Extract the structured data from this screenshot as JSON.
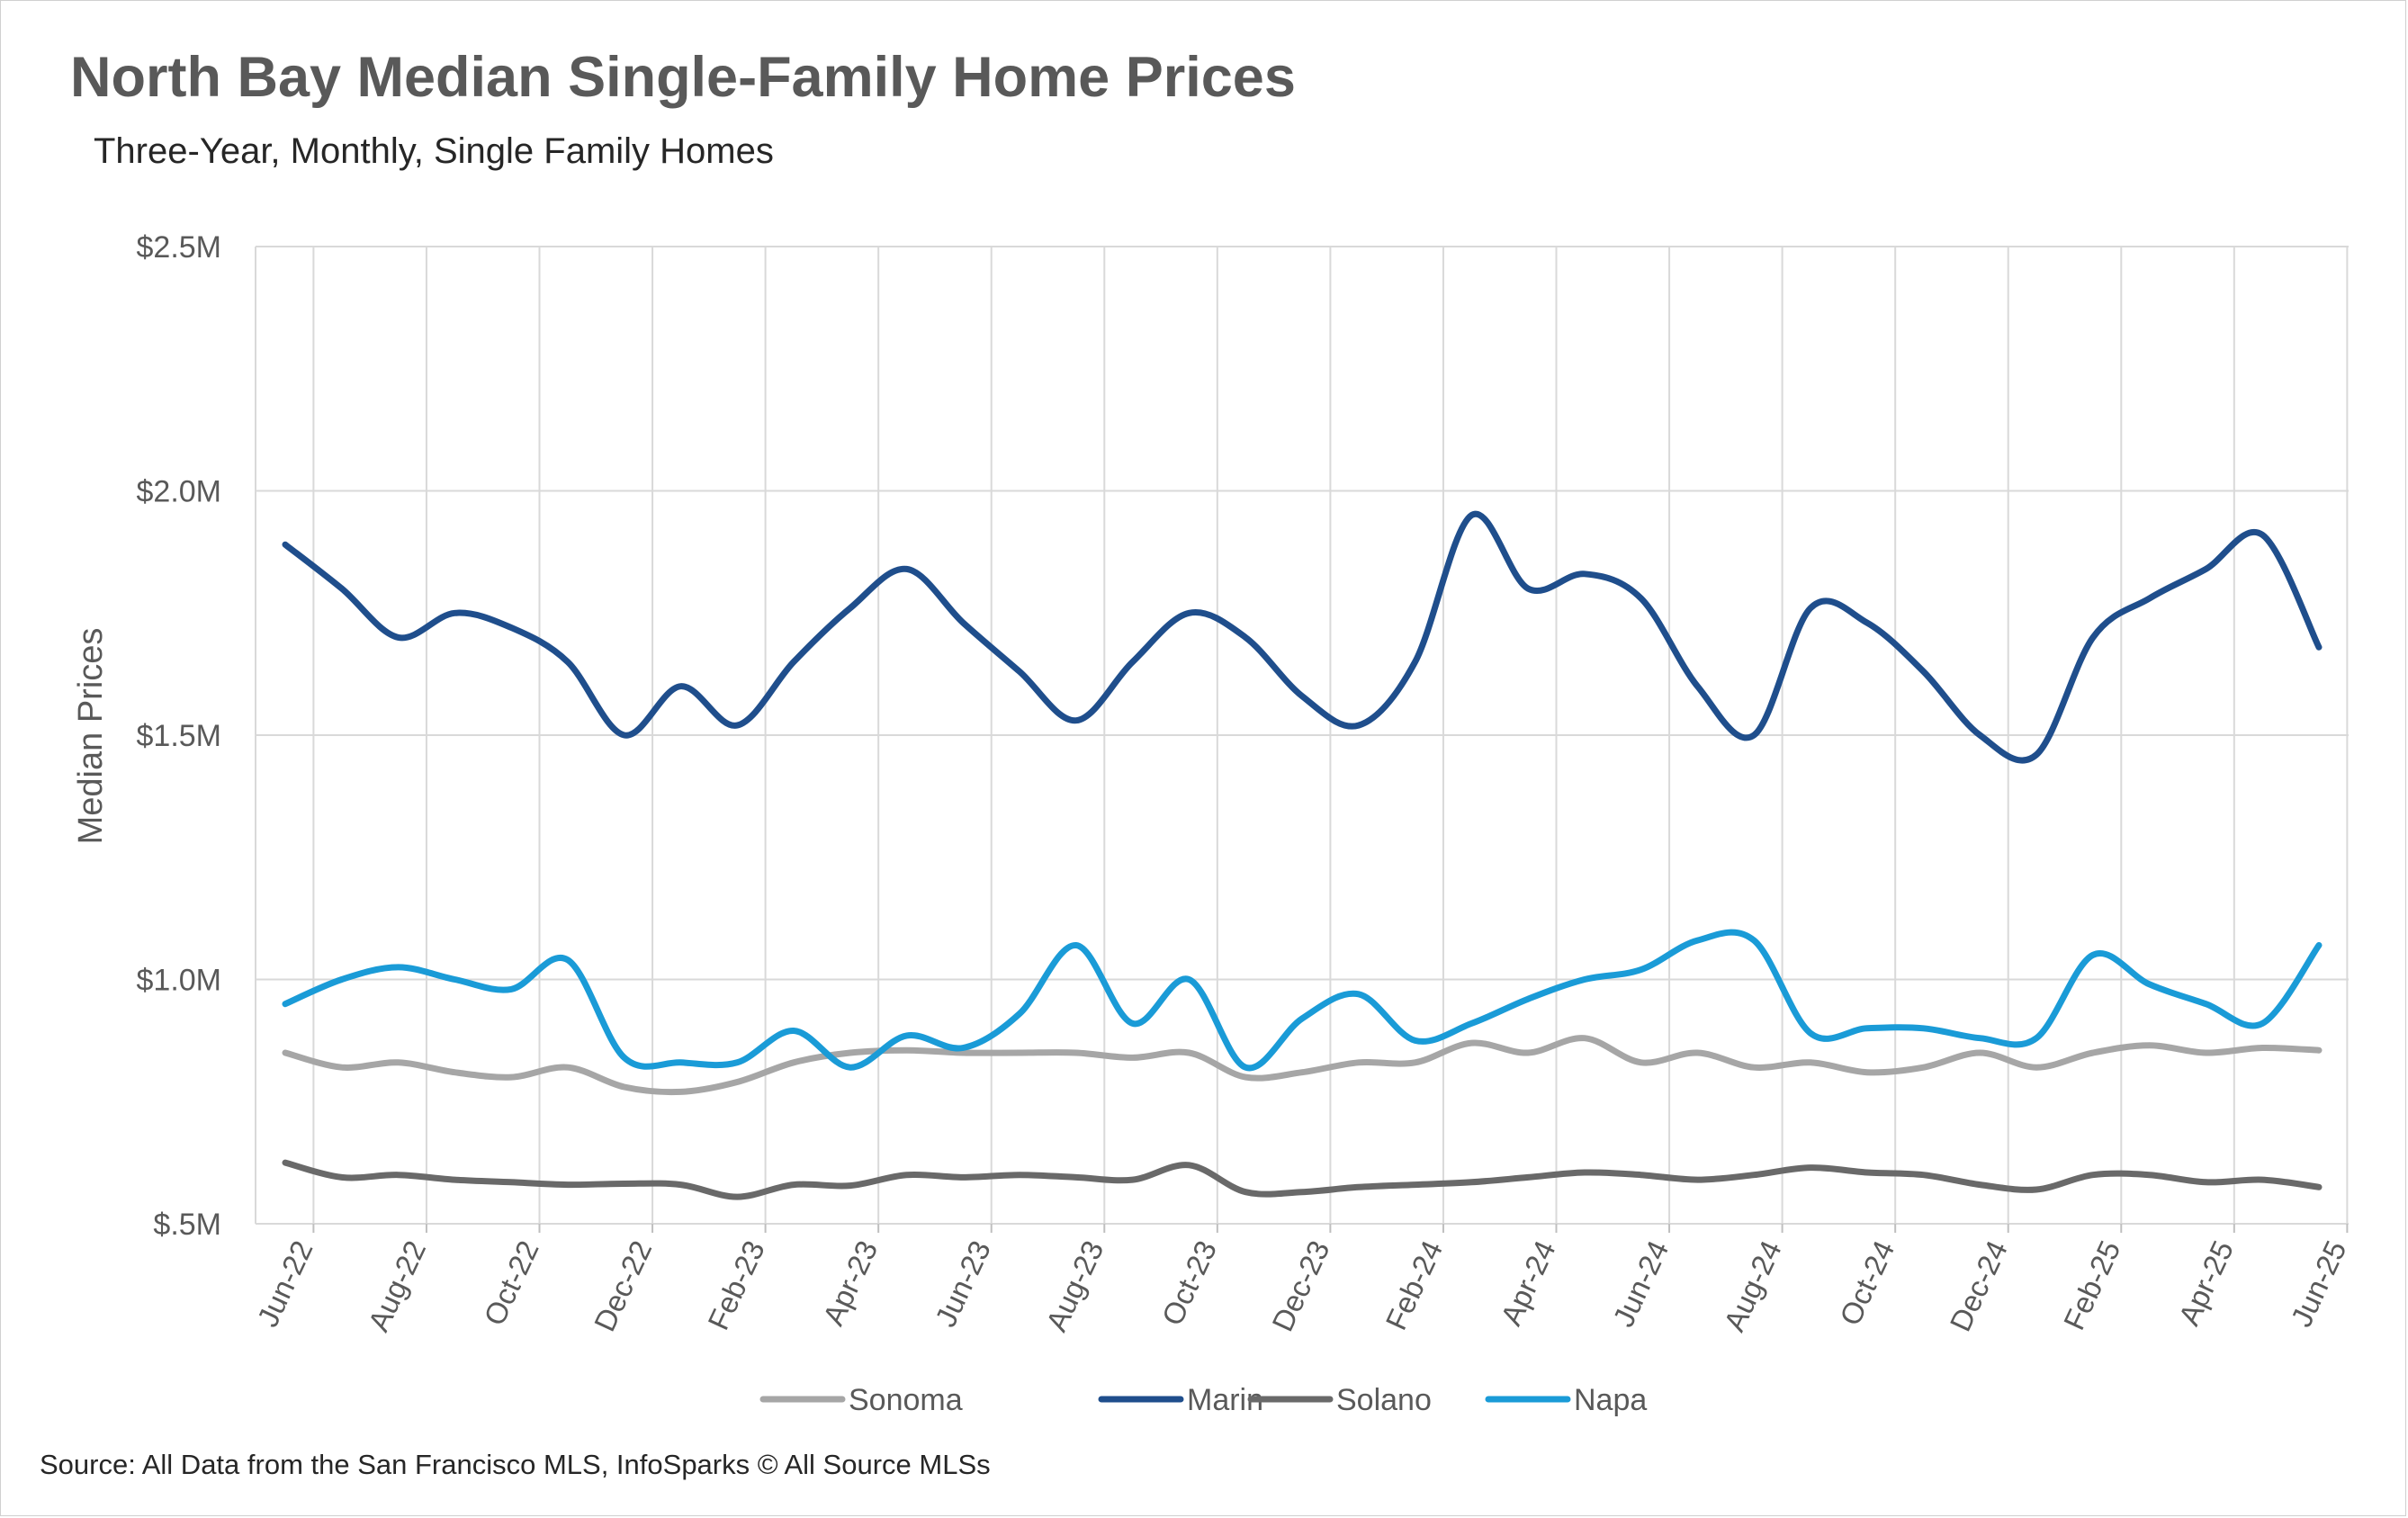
{
  "chart_data": {
    "type": "line",
    "title": "North Bay Median Single-Family Home Prices",
    "subtitle": "Three-Year, Monthly, Single Family Homes",
    "ylabel": "Median Prices",
    "xlabel": "",
    "source": "Source: All Data from the San Francisco MLS, InfoSparks © All Source MLSs",
    "ylim": [
      0.5,
      2.5
    ],
    "y_unit": "millions of dollars",
    "y_ticks": [
      {
        "value": 0.5,
        "label": "$.5M"
      },
      {
        "value": 1.0,
        "label": "$1.0M"
      },
      {
        "value": 1.5,
        "label": "$1.5M"
      },
      {
        "value": 2.0,
        "label": "$2.0M"
      },
      {
        "value": 2.5,
        "label": "$2.5M"
      }
    ],
    "grid": true,
    "legend_position": "bottom",
    "x": [
      "Jun-22",
      "Jul-22",
      "Aug-22",
      "Sep-22",
      "Oct-22",
      "Nov-22",
      "Dec-22",
      "Jan-23",
      "Feb-23",
      "Mar-23",
      "Apr-23",
      "May-23",
      "Jun-23",
      "Jul-23",
      "Aug-23",
      "Sep-23",
      "Oct-23",
      "Nov-23",
      "Dec-23",
      "Jan-24",
      "Feb-24",
      "Mar-24",
      "Apr-24",
      "May-24",
      "Jun-24",
      "Jul-24",
      "Aug-24",
      "Sep-24",
      "Oct-24",
      "Nov-24",
      "Dec-24",
      "Jan-25",
      "Feb-25",
      "Mar-25",
      "Apr-25",
      "May-25",
      "Jun-25"
    ],
    "x_tick_labels": [
      "Jun-22",
      "Aug-22",
      "Oct-22",
      "Dec-22",
      "Feb-23",
      "Apr-23",
      "Jun-23",
      "Aug-23",
      "Oct-23",
      "Dec-23",
      "Feb-24",
      "Apr-24",
      "Jun-24",
      "Aug-24",
      "Oct-24",
      "Dec-24",
      "Feb-25",
      "Apr-25",
      "Jun-25"
    ],
    "series": [
      {
        "name": "Sonoma",
        "color": "#a6a6a6",
        "values": [
          0.85,
          0.82,
          0.83,
          0.81,
          0.8,
          0.82,
          0.78,
          0.77,
          0.79,
          0.83,
          0.85,
          0.855,
          0.85,
          0.85,
          0.85,
          0.84,
          0.85,
          0.8,
          0.81,
          0.83,
          0.83,
          0.87,
          0.85,
          0.88,
          0.83,
          0.85,
          0.82,
          0.83,
          0.81,
          0.82,
          0.85,
          0.82,
          0.85,
          0.865,
          0.85,
          0.86,
          0.855
        ]
      },
      {
        "name": "Marin",
        "color": "#1f4e8c",
        "values": [
          1.89,
          1.8,
          1.7,
          1.75,
          1.72,
          1.65,
          1.5,
          1.6,
          1.52,
          1.65,
          1.76,
          1.84,
          1.73,
          1.63,
          1.53,
          1.65,
          1.75,
          1.7,
          1.58,
          1.52,
          1.65,
          1.95,
          1.8,
          1.83,
          1.78,
          1.6,
          1.5,
          1.76,
          1.73,
          1.63,
          1.5,
          1.46,
          1.7,
          1.78,
          1.84,
          1.91,
          1.68
        ]
      },
      {
        "name": "Solano",
        "color": "#696969",
        "values": [
          0.625,
          0.595,
          0.6,
          0.59,
          0.585,
          0.58,
          0.582,
          0.58,
          0.555,
          0.58,
          0.578,
          0.6,
          0.595,
          0.6,
          0.595,
          0.59,
          0.62,
          0.565,
          0.565,
          0.575,
          0.58,
          0.585,
          0.595,
          0.605,
          0.6,
          0.59,
          0.6,
          0.615,
          0.605,
          0.6,
          0.58,
          0.57,
          0.6,
          0.6,
          0.585,
          0.59,
          0.575
        ]
      },
      {
        "name": "Napa",
        "color": "#1a9bd7",
        "values": [
          0.95,
          1.0,
          1.025,
          1.0,
          0.98,
          1.04,
          0.84,
          0.83,
          0.83,
          0.895,
          0.82,
          0.885,
          0.86,
          0.93,
          1.07,
          0.91,
          1.0,
          0.82,
          0.92,
          0.97,
          0.875,
          0.91,
          0.96,
          1.0,
          1.02,
          1.08,
          1.08,
          0.89,
          0.9,
          0.9,
          0.88,
          0.88,
          1.05,
          0.99,
          0.95,
          0.91,
          1.07
        ]
      }
    ]
  }
}
